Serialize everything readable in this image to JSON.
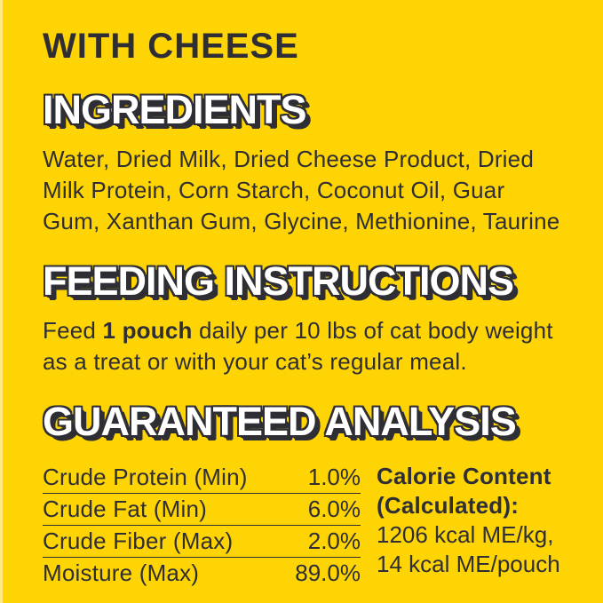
{
  "title": "WITH CHEESE",
  "ingredients": {
    "heading": "INGREDIENTS",
    "text": "Water, Dried Milk, Dried Cheese Product, Dried Milk Protein, Corn Starch, Coconut Oil, Guar Gum, Xanthan Gum, Glycine, Methionine, Taurine"
  },
  "feeding": {
    "heading": "FEEDING INSTRUCTIONS",
    "prefix": "Feed ",
    "bold": "1 pouch",
    "suffix": " daily per 10 lbs of cat body weight as a treat or with your cat’s regular meal."
  },
  "analysis": {
    "heading": "GUARANTEED ANALYSIS",
    "rows": [
      {
        "label": "Crude Protein (Min)",
        "value": "1.0%"
      },
      {
        "label": "Crude Fat (Min)",
        "value": "6.0%"
      },
      {
        "label": "Crude Fiber (Max)",
        "value": "2.0%"
      },
      {
        "label": "Moisture (Max)",
        "value": "89.0%"
      }
    ],
    "calorie": {
      "title_line1": "Calorie Content",
      "title_line2": "(Calculated):",
      "value_line1": "1206 kcal ME/kg,",
      "value_line2": "14 kcal ME/pouch"
    }
  },
  "colors": {
    "background": "#FED405",
    "ink": "#2E2E34",
    "heading_fill": "#FFFFFF"
  }
}
